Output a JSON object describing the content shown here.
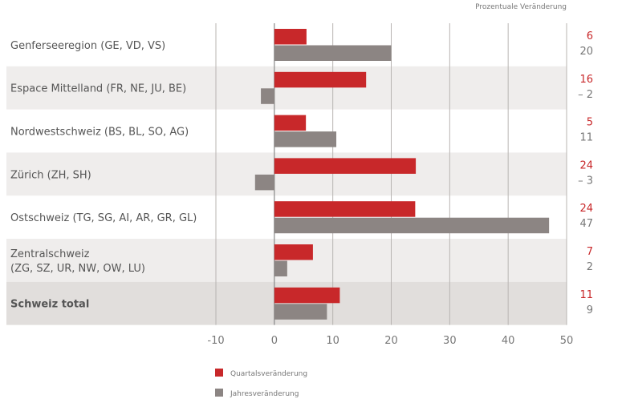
{
  "chart_data": {
    "type": "bar",
    "orientation": "horizontal",
    "unit_label": "Prozentuale Veränderung",
    "categories": [
      [
        "Genferseeregion (GE, VD, VS)"
      ],
      [
        "Espace Mittelland (FR, NE, JU, BE)"
      ],
      [
        "Nordwestschweiz (BS, BL, SO, AG)"
      ],
      [
        "Zürich (ZH, SH)"
      ],
      [
        "Ostschweiz (TG, SG, AI, AR, GR, GL)"
      ],
      [
        "Zentralschweiz",
        "(ZG, SZ, UR, NW, OW, LU)"
      ],
      [
        "Schweiz total"
      ]
    ],
    "bold_category": 6,
    "series": [
      {
        "name": "Quartalsveränderung",
        "color": "#c8282a",
        "values": [
          5.5,
          15.7,
          5.4,
          24.2,
          24.1,
          6.6,
          11.2
        ],
        "labels": [
          "6",
          "16",
          "5",
          "24",
          "24",
          "7",
          "11"
        ]
      },
      {
        "name": "Jahresveränderung",
        "color": "#8c8583",
        "values": [
          20,
          -2.3,
          10.6,
          -3.3,
          47,
          2.2,
          9
        ],
        "labels": [
          "20",
          "– 2",
          "11",
          "– 3",
          "47",
          "2",
          "9"
        ]
      }
    ],
    "xlim": [
      -10,
      50
    ],
    "xticks": [
      "-10",
      "0",
      "10",
      "20",
      "30",
      "40",
      "50"
    ],
    "xtick_values": [
      -10,
      0,
      10,
      20,
      30,
      40,
      50
    ],
    "shaded_rows": [
      1,
      3,
      5,
      6
    ],
    "shade_colors": {
      "light": "#efedec",
      "dark": "#e1dedc"
    }
  }
}
